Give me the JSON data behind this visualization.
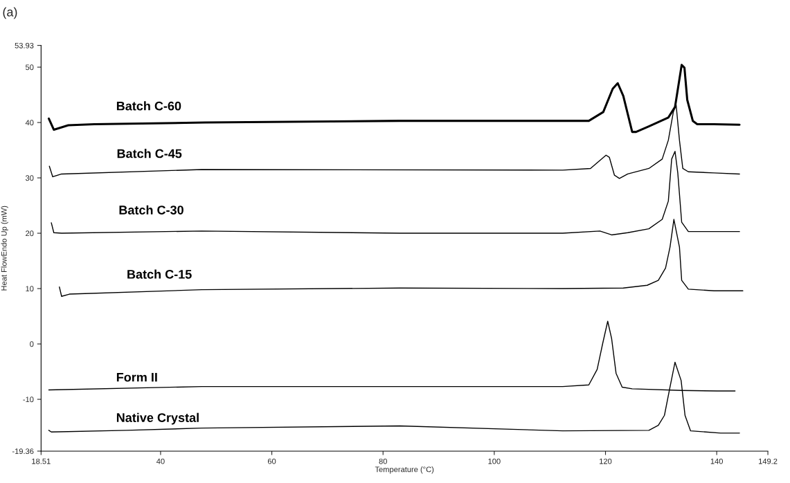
{
  "chart_data": {
    "type": "line",
    "title": "(a)",
    "xlabel": "Temperature (°C)",
    "ylabel": "Heat FlowEndo Up (mW)",
    "xlim": [
      18.51,
      149.2
    ],
    "xticks": [
      18.51,
      40,
      60,
      80,
      100,
      120,
      140,
      149.2
    ],
    "ylim": [
      -19.36,
      53.93
    ],
    "yticks": [
      -19.36,
      -10,
      0,
      10,
      20,
      30,
      40,
      50,
      53.93
    ],
    "grid": false,
    "legend": false,
    "marker": "none",
    "line_style": "solid",
    "series": [
      {
        "name": "Batch C-60",
        "color": "#000000",
        "x": [
          19.9,
          20.8,
          23.4,
          28.1,
          48.0,
          83.0,
          112.3,
          117.0,
          119.6,
          121.3,
          122.2,
          123.2,
          124.8,
          125.5,
          127.8,
          131.3,
          132.5,
          133.7,
          134.2,
          134.7,
          135.7,
          136.5,
          139.5,
          144.1
        ],
        "values": [
          40.7,
          38.7,
          39.5,
          39.7,
          40.0,
          40.3,
          40.3,
          40.3,
          41.9,
          46.1,
          47.1,
          44.8,
          38.3,
          38.3,
          39.3,
          40.9,
          42.8,
          50.4,
          49.9,
          44.1,
          40.3,
          39.7,
          39.7,
          39.6
        ]
      },
      {
        "name": "Batch C-45",
        "color": "#000000",
        "x": [
          20.0,
          20.6,
          22.2,
          47.4,
          112.3,
          117.3,
          120.1,
          120.7,
          121.6,
          122.5,
          124.0,
          127.8,
          130.2,
          131.3,
          132.2,
          132.7,
          133.3,
          133.9,
          134.9,
          139.5,
          144.1
        ],
        "values": [
          32.1,
          30.2,
          30.7,
          31.5,
          31.4,
          31.7,
          34.1,
          33.7,
          30.5,
          29.9,
          30.7,
          31.7,
          33.4,
          36.8,
          41.9,
          43.2,
          36.8,
          31.7,
          31.1,
          30.9,
          30.7
        ]
      },
      {
        "name": "Batch C-30",
        "color": "#000000",
        "x": [
          20.35,
          20.8,
          22.2,
          47.4,
          83.0,
          112.3,
          119.0,
          121.1,
          124.0,
          127.8,
          130.2,
          131.3,
          131.9,
          132.5,
          133.0,
          133.7,
          134.9,
          144.1
        ],
        "values": [
          21.9,
          20.1,
          20.0,
          20.4,
          20.0,
          20.0,
          20.4,
          19.7,
          20.1,
          20.8,
          22.5,
          25.8,
          33.4,
          34.8,
          30.9,
          22.0,
          20.3,
          20.3
        ]
      },
      {
        "name": "Batch C-15",
        "color": "#000000",
        "x": [
          21.8,
          22.2,
          23.6,
          47.4,
          83.0,
          112.3,
          123.2,
          127.5,
          129.5,
          130.8,
          131.6,
          132.3,
          133.3,
          133.7,
          134.9,
          139.5,
          144.7
        ],
        "values": [
          10.3,
          8.6,
          9.0,
          9.8,
          10.1,
          10.0,
          10.1,
          10.6,
          11.5,
          13.7,
          17.5,
          22.5,
          17.5,
          11.5,
          9.9,
          9.6,
          9.6
        ]
      },
      {
        "name": "Form II",
        "color": "#000000",
        "x": [
          19.9,
          47.4,
          112.3,
          117.0,
          118.5,
          119.5,
          120.4,
          121.1,
          121.9,
          123.0,
          124.8,
          133.7,
          140.1,
          143.3
        ],
        "values": [
          -8.3,
          -7.7,
          -7.7,
          -7.4,
          -4.6,
          0.1,
          4.1,
          1.0,
          -5.3,
          -7.8,
          -8.1,
          -8.4,
          -8.5,
          -8.5
        ]
      },
      {
        "name": "Native Crystal",
        "color": "#000000",
        "x": [
          19.9,
          20.35,
          33.9,
          47.4,
          83.0,
          112.3,
          127.8,
          129.5,
          130.6,
          131.6,
          132.5,
          133.6,
          134.3,
          135.3,
          140.7,
          144.1
        ],
        "values": [
          -15.6,
          -15.9,
          -15.6,
          -15.2,
          -14.8,
          -15.7,
          -15.6,
          -14.7,
          -12.9,
          -7.8,
          -3.3,
          -6.6,
          -12.9,
          -15.7,
          -16.1,
          -16.1
        ]
      }
    ]
  }
}
